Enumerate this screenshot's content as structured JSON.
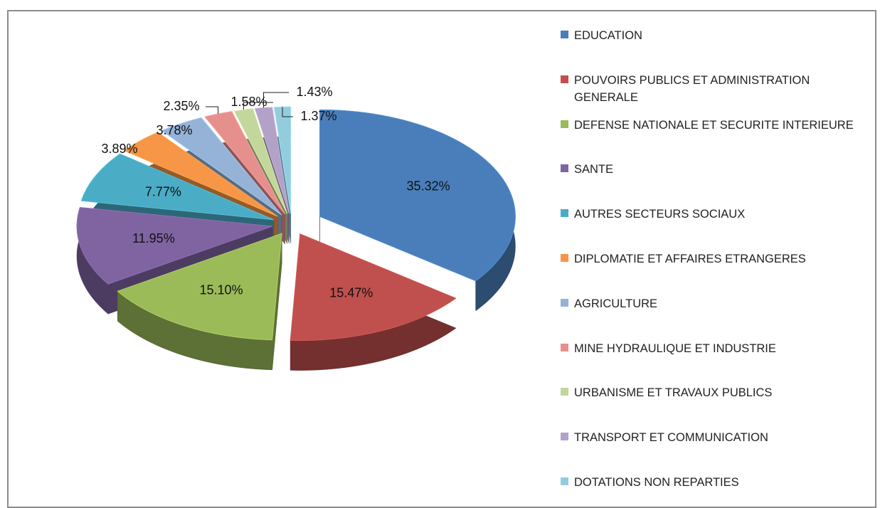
{
  "chart_data": {
    "type": "pie",
    "categories": [
      "EDUCATION",
      "POUVOIRS PUBLICS ET ADMINISTRATION GENERALE",
      "DEFENSE NATIONALE ET SECURITE INTERIEURE",
      "SANTE",
      "AUTRES SECTEURS SOCIAUX",
      "DIPLOMATIE ET AFFAIRES ETRANGERES",
      "AGRICULTURE",
      "MINE HYDRAULIQUE ET INDUSTRIE",
      "URBANISME ET TRAVAUX PUBLICS",
      "TRANSPORT ET COMMUNICATION",
      "DOTATIONS NON REPARTIES"
    ],
    "values": [
      35.32,
      15.47,
      15.1,
      11.95,
      7.77,
      3.89,
      3.78,
      2.35,
      1.58,
      1.43,
      1.37
    ],
    "value_labels": [
      "35.32%",
      "15.47%",
      "15.10%",
      "11.95%",
      "7.77%",
      "3.89%",
      "3.78%",
      "2.35%",
      "1.58%",
      "1.43%",
      "1.37%"
    ],
    "colors": [
      "#4a7ebb",
      "#c0504d",
      "#9bbb59",
      "#8064a2",
      "#4bacc6",
      "#f79646",
      "#95b3d7",
      "#e6908e",
      "#c3d69b",
      "#b3a2c7",
      "#93cddd"
    ],
    "legend": "right"
  }
}
